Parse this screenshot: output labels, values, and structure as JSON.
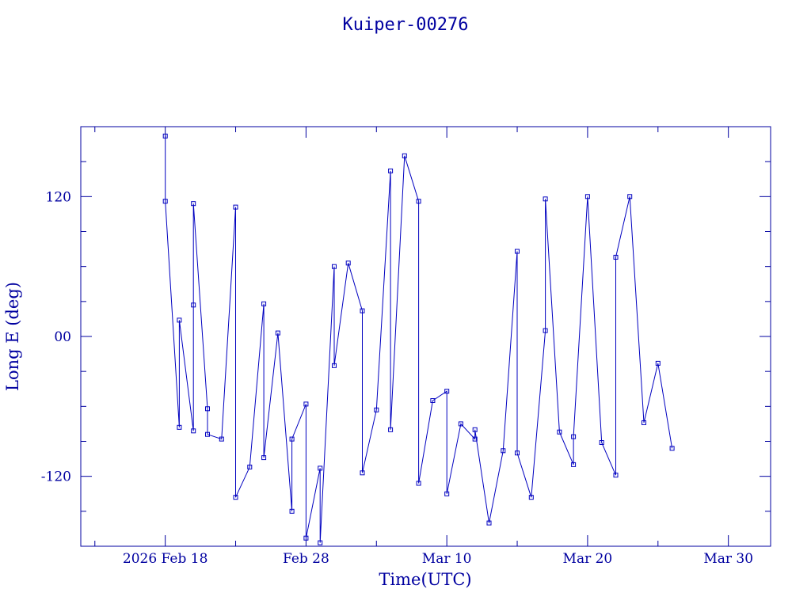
{
  "chart_data": {
    "type": "scatter",
    "title": "Kuiper-00276",
    "xlabel": "Time(UTC)",
    "ylabel": "Long E (deg)",
    "x_unit": "days",
    "x_range": [
      "2026-02-12",
      "2026-04-02"
    ],
    "ylim": [
      -180,
      180
    ],
    "x_ticks": [
      {
        "date": "2026-02-18",
        "label": "2026 Feb 18"
      },
      {
        "date": "2026-02-28",
        "label": "Feb 28"
      },
      {
        "date": "2026-03-10",
        "label": "Mar 10"
      },
      {
        "date": "2026-03-20",
        "label": "Mar 20"
      },
      {
        "date": "2026-03-30",
        "label": "Mar 30"
      }
    ],
    "y_ticks": [
      {
        "value": 120,
        "label": "120"
      },
      {
        "value": 0,
        "label": "00"
      },
      {
        "value": -120,
        "label": "-120"
      }
    ],
    "grid": false,
    "series": [
      {
        "color": "#0000c0",
        "marker": "square",
        "x": [
          "2026-02-18",
          "2026-02-18",
          "2026-02-19",
          "2026-02-19",
          "2026-02-20",
          "2026-02-20",
          "2026-02-20",
          "2026-02-21",
          "2026-02-21",
          "2026-02-22",
          "2026-02-23",
          "2026-02-23",
          "2026-02-24",
          "2026-02-25",
          "2026-02-25",
          "2026-02-26",
          "2026-02-27",
          "2026-02-27",
          "2026-02-28",
          "2026-02-28",
          "2026-03-01",
          "2026-03-01",
          "2026-03-02",
          "2026-03-02",
          "2026-03-03",
          "2026-03-04",
          "2026-03-04",
          "2026-03-05",
          "2026-03-06",
          "2026-03-06",
          "2026-03-07",
          "2026-03-08",
          "2026-03-08",
          "2026-03-09",
          "2026-03-10",
          "2026-03-10",
          "2026-03-11",
          "2026-03-12",
          "2026-03-12",
          "2026-03-13",
          "2026-03-14",
          "2026-03-15",
          "2026-03-15",
          "2026-03-16",
          "2026-03-17",
          "2026-03-17",
          "2026-03-18",
          "2026-03-19",
          "2026-03-19",
          "2026-03-20",
          "2026-03-21",
          "2026-03-22",
          "2026-03-22",
          "2026-03-23",
          "2026-03-24",
          "2026-03-25",
          "2026-03-26"
        ],
        "y": [
          172,
          116,
          -78,
          14,
          -81,
          27,
          114,
          -62,
          -84,
          -88,
          111,
          -138,
          -112,
          28,
          -104,
          3,
          -150,
          -88,
          -58,
          -173,
          -113,
          -177,
          60,
          -25,
          63,
          22,
          -117,
          -63,
          142,
          -80,
          155,
          116,
          -126,
          -55,
          -47,
          -135,
          -75,
          -88,
          -80,
          -160,
          -98,
          73,
          -100,
          -138,
          5,
          118,
          -82,
          -110,
          -86,
          120,
          -91,
          -119,
          68,
          120,
          -74,
          -23,
          -96
        ]
      }
    ]
  }
}
